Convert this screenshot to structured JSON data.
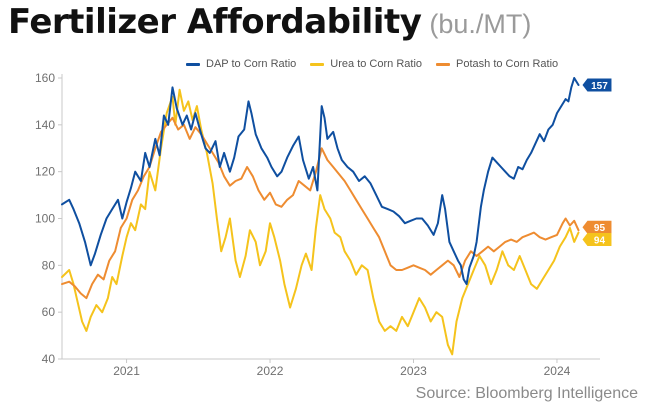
{
  "title": "Fertilizer Affordability",
  "title_unit": "(bu./MT)",
  "source": "Source: Bloomberg Intelligence",
  "chart_data": {
    "type": "line",
    "title": "Fertilizer Affordability",
    "unit": "(bu./MT)",
    "xlabel": "",
    "ylabel": "",
    "xlim": [
      2020.55,
      2024.3
    ],
    "ylim": [
      40,
      160
    ],
    "x_ticks": [
      {
        "value": 2021.0,
        "label": "2021"
      },
      {
        "value": 2022.0,
        "label": "2022"
      },
      {
        "value": 2023.0,
        "label": "2023"
      },
      {
        "value": 2024.0,
        "label": "2024"
      }
    ],
    "y_ticks": [
      40,
      60,
      80,
      100,
      120,
      140,
      160
    ],
    "grid": false,
    "legend_position": "top",
    "series": [
      {
        "name": "DAP to Corn Ratio",
        "color": "#0f4fa0",
        "end_label": "157",
        "points": [
          [
            2020.55,
            106
          ],
          [
            2020.6,
            108
          ],
          [
            2020.63,
            104
          ],
          [
            2020.67,
            98
          ],
          [
            2020.71,
            90
          ],
          [
            2020.75,
            80
          ],
          [
            2020.78,
            85
          ],
          [
            2020.82,
            93
          ],
          [
            2020.86,
            100
          ],
          [
            2020.9,
            104
          ],
          [
            2020.94,
            108
          ],
          [
            2020.97,
            100
          ],
          [
            2021.0,
            107
          ],
          [
            2021.03,
            113
          ],
          [
            2021.06,
            120
          ],
          [
            2021.1,
            116
          ],
          [
            2021.13,
            128
          ],
          [
            2021.16,
            122
          ],
          [
            2021.2,
            134
          ],
          [
            2021.23,
            127
          ],
          [
            2021.26,
            144
          ],
          [
            2021.29,
            140
          ],
          [
            2021.32,
            156
          ],
          [
            2021.35,
            147
          ],
          [
            2021.39,
            140
          ],
          [
            2021.42,
            144
          ],
          [
            2021.45,
            138
          ],
          [
            2021.48,
            145
          ],
          [
            2021.52,
            136
          ],
          [
            2021.55,
            130
          ],
          [
            2021.58,
            128
          ],
          [
            2021.62,
            133
          ],
          [
            2021.65,
            122
          ],
          [
            2021.68,
            128
          ],
          [
            2021.72,
            120
          ],
          [
            2021.75,
            126
          ],
          [
            2021.78,
            135
          ],
          [
            2021.82,
            138
          ],
          [
            2021.85,
            150
          ],
          [
            2021.87,
            145
          ],
          [
            2021.9,
            136
          ],
          [
            2021.94,
            130
          ],
          [
            2021.98,
            126
          ],
          [
            2022.01,
            122
          ],
          [
            2022.05,
            118
          ],
          [
            2022.08,
            120
          ],
          [
            2022.12,
            126
          ],
          [
            2022.16,
            131
          ],
          [
            2022.2,
            135
          ],
          [
            2022.23,
            125
          ],
          [
            2022.27,
            117
          ],
          [
            2022.3,
            122
          ],
          [
            2022.33,
            112
          ],
          [
            2022.36,
            148
          ],
          [
            2022.38,
            143
          ],
          [
            2022.4,
            134
          ],
          [
            2022.44,
            137
          ],
          [
            2022.47,
            130
          ],
          [
            2022.5,
            125
          ],
          [
            2022.54,
            122
          ],
          [
            2022.58,
            120
          ],
          [
            2022.62,
            116
          ],
          [
            2022.66,
            118
          ],
          [
            2022.7,
            115
          ],
          [
            2022.74,
            110
          ],
          [
            2022.78,
            105
          ],
          [
            2022.82,
            104
          ],
          [
            2022.86,
            103
          ],
          [
            2022.9,
            101
          ],
          [
            2022.94,
            98
          ],
          [
            2022.98,
            99
          ],
          [
            2023.02,
            100
          ],
          [
            2023.06,
            100
          ],
          [
            2023.1,
            97
          ],
          [
            2023.14,
            93
          ],
          [
            2023.17,
            98
          ],
          [
            2023.2,
            110
          ],
          [
            2023.22,
            104
          ],
          [
            2023.25,
            90
          ],
          [
            2023.28,
            86
          ],
          [
            2023.31,
            82
          ],
          [
            2023.33,
            80
          ],
          [
            2023.35,
            74
          ],
          [
            2023.37,
            72
          ],
          [
            2023.39,
            79
          ],
          [
            2023.42,
            84
          ],
          [
            2023.44,
            90
          ],
          [
            2023.47,
            105
          ],
          [
            2023.49,
            112
          ],
          [
            2023.52,
            120
          ],
          [
            2023.55,
            126
          ],
          [
            2023.58,
            124
          ],
          [
            2023.61,
            122
          ],
          [
            2023.64,
            120
          ],
          [
            2023.67,
            118
          ],
          [
            2023.7,
            117
          ],
          [
            2023.73,
            122
          ],
          [
            2023.76,
            121
          ],
          [
            2023.79,
            125
          ],
          [
            2023.82,
            128
          ],
          [
            2023.85,
            132
          ],
          [
            2023.88,
            136
          ],
          [
            2023.91,
            133
          ],
          [
            2023.94,
            138
          ],
          [
            2023.97,
            140
          ],
          [
            2024.0,
            145
          ],
          [
            2024.03,
            148
          ],
          [
            2024.06,
            151
          ],
          [
            2024.08,
            150
          ],
          [
            2024.1,
            156
          ],
          [
            2024.12,
            160
          ],
          [
            2024.15,
            157
          ]
        ]
      },
      {
        "name": "Urea to Corn Ratio",
        "color": "#f5c31c",
        "end_label": "94",
        "points": [
          [
            2020.55,
            75
          ],
          [
            2020.6,
            78
          ],
          [
            2020.63,
            72
          ],
          [
            2020.66,
            64
          ],
          [
            2020.69,
            56
          ],
          [
            2020.72,
            52
          ],
          [
            2020.75,
            58
          ],
          [
            2020.79,
            63
          ],
          [
            2020.83,
            60
          ],
          [
            2020.87,
            66
          ],
          [
            2020.9,
            75
          ],
          [
            2020.93,
            72
          ],
          [
            2020.97,
            84
          ],
          [
            2021.0,
            92
          ],
          [
            2021.03,
            98
          ],
          [
            2021.06,
            95
          ],
          [
            2021.1,
            106
          ],
          [
            2021.13,
            104
          ],
          [
            2021.16,
            120
          ],
          [
            2021.2,
            112
          ],
          [
            2021.24,
            130
          ],
          [
            2021.28,
            145
          ],
          [
            2021.32,
            152
          ],
          [
            2021.34,
            140
          ],
          [
            2021.37,
            155
          ],
          [
            2021.4,
            146
          ],
          [
            2021.43,
            150
          ],
          [
            2021.46,
            142
          ],
          [
            2021.49,
            148
          ],
          [
            2021.52,
            138
          ],
          [
            2021.56,
            128
          ],
          [
            2021.6,
            115
          ],
          [
            2021.63,
            100
          ],
          [
            2021.66,
            86
          ],
          [
            2021.69,
            92
          ],
          [
            2021.72,
            100
          ],
          [
            2021.76,
            82
          ],
          [
            2021.79,
            75
          ],
          [
            2021.83,
            84
          ],
          [
            2021.86,
            95
          ],
          [
            2021.9,
            90
          ],
          [
            2021.93,
            80
          ],
          [
            2021.97,
            86
          ],
          [
            2022.0,
            98
          ],
          [
            2022.03,
            92
          ],
          [
            2022.07,
            82
          ],
          [
            2022.1,
            72
          ],
          [
            2022.14,
            62
          ],
          [
            2022.18,
            70
          ],
          [
            2022.22,
            80
          ],
          [
            2022.25,
            85
          ],
          [
            2022.29,
            78
          ],
          [
            2022.32,
            96
          ],
          [
            2022.35,
            110
          ],
          [
            2022.38,
            104
          ],
          [
            2022.42,
            100
          ],
          [
            2022.45,
            94
          ],
          [
            2022.49,
            92
          ],
          [
            2022.52,
            86
          ],
          [
            2022.56,
            82
          ],
          [
            2022.6,
            76
          ],
          [
            2022.64,
            80
          ],
          [
            2022.68,
            78
          ],
          [
            2022.72,
            66
          ],
          [
            2022.76,
            56
          ],
          [
            2022.8,
            52
          ],
          [
            2022.84,
            54
          ],
          [
            2022.88,
            52
          ],
          [
            2022.92,
            58
          ],
          [
            2022.96,
            54
          ],
          [
            2023.0,
            60
          ],
          [
            2023.04,
            66
          ],
          [
            2023.08,
            62
          ],
          [
            2023.12,
            56
          ],
          [
            2023.16,
            60
          ],
          [
            2023.2,
            58
          ],
          [
            2023.24,
            46
          ],
          [
            2023.27,
            42
          ],
          [
            2023.3,
            56
          ],
          [
            2023.34,
            66
          ],
          [
            2023.38,
            72
          ],
          [
            2023.42,
            78
          ],
          [
            2023.46,
            84
          ],
          [
            2023.5,
            80
          ],
          [
            2023.54,
            72
          ],
          [
            2023.58,
            78
          ],
          [
            2023.62,
            86
          ],
          [
            2023.66,
            80
          ],
          [
            2023.7,
            78
          ],
          [
            2023.74,
            84
          ],
          [
            2023.78,
            78
          ],
          [
            2023.82,
            72
          ],
          [
            2023.86,
            70
          ],
          [
            2023.9,
            74
          ],
          [
            2023.94,
            78
          ],
          [
            2023.98,
            82
          ],
          [
            2024.02,
            88
          ],
          [
            2024.06,
            92
          ],
          [
            2024.09,
            96
          ],
          [
            2024.12,
            90
          ],
          [
            2024.15,
            94
          ]
        ]
      },
      {
        "name": "Potash to Corn Ratio",
        "color": "#ee8c31",
        "end_label": "95",
        "points": [
          [
            2020.55,
            72
          ],
          [
            2020.6,
            73
          ],
          [
            2020.64,
            71
          ],
          [
            2020.68,
            68
          ],
          [
            2020.72,
            66
          ],
          [
            2020.76,
            72
          ],
          [
            2020.8,
            76
          ],
          [
            2020.84,
            74
          ],
          [
            2020.88,
            82
          ],
          [
            2020.92,
            86
          ],
          [
            2020.96,
            96
          ],
          [
            2021.0,
            100
          ],
          [
            2021.04,
            108
          ],
          [
            2021.08,
            112
          ],
          [
            2021.12,
            118
          ],
          [
            2021.16,
            122
          ],
          [
            2021.2,
            130
          ],
          [
            2021.24,
            137
          ],
          [
            2021.28,
            140
          ],
          [
            2021.32,
            143
          ],
          [
            2021.36,
            138
          ],
          [
            2021.4,
            140
          ],
          [
            2021.44,
            134
          ],
          [
            2021.48,
            139
          ],
          [
            2021.52,
            136
          ],
          [
            2021.56,
            132
          ],
          [
            2021.6,
            128
          ],
          [
            2021.64,
            124
          ],
          [
            2021.68,
            118
          ],
          [
            2021.72,
            114
          ],
          [
            2021.76,
            116
          ],
          [
            2021.8,
            117
          ],
          [
            2021.84,
            122
          ],
          [
            2021.88,
            118
          ],
          [
            2021.92,
            112
          ],
          [
            2021.96,
            108
          ],
          [
            2022.0,
            111
          ],
          [
            2022.04,
            106
          ],
          [
            2022.08,
            105
          ],
          [
            2022.12,
            108
          ],
          [
            2022.16,
            110
          ],
          [
            2022.2,
            116
          ],
          [
            2022.24,
            114
          ],
          [
            2022.28,
            112
          ],
          [
            2022.32,
            120
          ],
          [
            2022.36,
            130
          ],
          [
            2022.4,
            125
          ],
          [
            2022.44,
            122
          ],
          [
            2022.48,
            119
          ],
          [
            2022.52,
            116
          ],
          [
            2022.56,
            112
          ],
          [
            2022.6,
            108
          ],
          [
            2022.64,
            104
          ],
          [
            2022.68,
            100
          ],
          [
            2022.72,
            96
          ],
          [
            2022.76,
            92
          ],
          [
            2022.8,
            86
          ],
          [
            2022.84,
            80
          ],
          [
            2022.88,
            78
          ],
          [
            2022.92,
            78
          ],
          [
            2022.96,
            79
          ],
          [
            2023.0,
            80
          ],
          [
            2023.04,
            79
          ],
          [
            2023.08,
            78
          ],
          [
            2023.12,
            76
          ],
          [
            2023.16,
            78
          ],
          [
            2023.2,
            80
          ],
          [
            2023.24,
            82
          ],
          [
            2023.28,
            80
          ],
          [
            2023.32,
            75
          ],
          [
            2023.36,
            82
          ],
          [
            2023.4,
            86
          ],
          [
            2023.44,
            84
          ],
          [
            2023.48,
            86
          ],
          [
            2023.52,
            88
          ],
          [
            2023.56,
            86
          ],
          [
            2023.6,
            88
          ],
          [
            2023.64,
            90
          ],
          [
            2023.68,
            91
          ],
          [
            2023.72,
            90
          ],
          [
            2023.76,
            92
          ],
          [
            2023.8,
            93
          ],
          [
            2023.84,
            94
          ],
          [
            2023.88,
            92
          ],
          [
            2023.92,
            91
          ],
          [
            2023.96,
            92
          ],
          [
            2024.0,
            93
          ],
          [
            2024.04,
            98
          ],
          [
            2024.06,
            100
          ],
          [
            2024.09,
            97
          ],
          [
            2024.12,
            99
          ],
          [
            2024.15,
            95
          ]
        ]
      }
    ]
  }
}
